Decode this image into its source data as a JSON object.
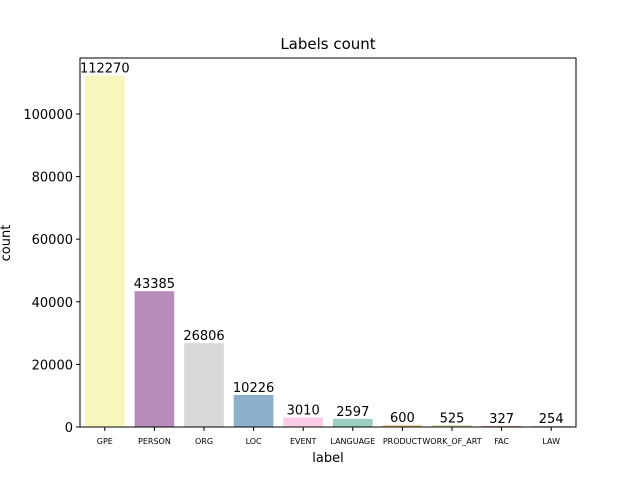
{
  "chart_data": {
    "type": "bar",
    "title": "Labels count",
    "xlabel": "label",
    "ylabel": "count",
    "categories": [
      "GPE",
      "PERSON",
      "ORG",
      "LOC",
      "EVENT",
      "LANGUAGE",
      "PRODUCT",
      "WORK_OF_ART",
      "FAC",
      "LAW"
    ],
    "values": [
      112270,
      43385,
      26806,
      10226,
      3010,
      2597,
      600,
      525,
      327,
      254
    ],
    "data_labels": [
      "112270",
      "43385",
      "26806",
      "10226",
      "3010",
      "2597",
      "600",
      "525",
      "327",
      "254"
    ],
    "colors": [
      "#f7f7bd",
      "#b88cba",
      "#d9d9d9",
      "#8db1cc",
      "#fbcce3",
      "#9bcdc1",
      "#f6c691",
      "#c3d691",
      "#e8988c",
      "#a9a4c8"
    ],
    "yticks": [
      0,
      20000,
      40000,
      60000,
      80000,
      100000
    ],
    "ylim": [
      0,
      117884
    ],
    "grid": false,
    "legend": "none"
  }
}
